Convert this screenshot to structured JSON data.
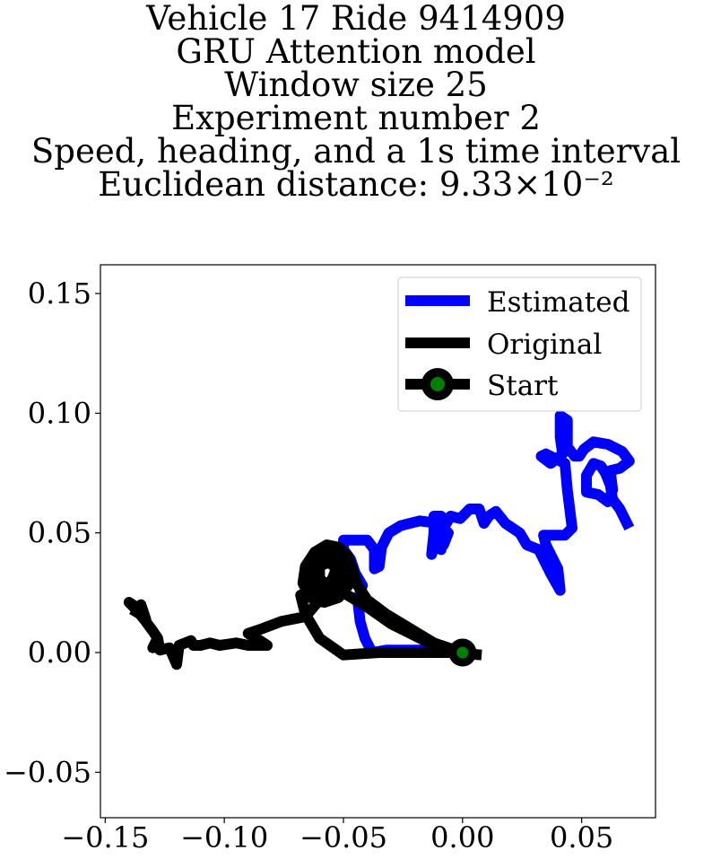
{
  "chart_data": {
    "type": "line",
    "title_lines": [
      "Vehicle 17 Ride 9414909",
      "GRU Attention model",
      "Window size 25",
      "Experiment number 2",
      "Speed, heading, and a 1s time interval",
      "Euclidean distance: 9.33×10⁻²"
    ],
    "xlim": [
      -0.152,
      0.081
    ],
    "ylim": [
      -0.069,
      0.162
    ],
    "x_ticks": [
      -0.15,
      -0.1,
      -0.05,
      0.0,
      0.05
    ],
    "x_tick_labels": [
      "−0.15",
      "−0.10",
      "−0.05",
      "0.00",
      "0.05"
    ],
    "y_ticks": [
      -0.05,
      0.0,
      0.05,
      0.1,
      0.15
    ],
    "y_tick_labels": [
      "−0.05",
      "0.00",
      "0.05",
      "0.10",
      "0.15"
    ],
    "grid": false,
    "legend_position": "upper right",
    "legend": [
      "Estimated",
      "Original",
      "Start"
    ],
    "series": [
      {
        "name": "Estimated",
        "color": "#0000ff",
        "points": [
          [
            0.0,
            0.0
          ],
          [
            -0.015,
            0.001
          ],
          [
            -0.032,
            0.001
          ],
          [
            -0.038,
            0.0
          ],
          [
            -0.041,
            0.006
          ],
          [
            -0.043,
            0.013
          ],
          [
            -0.044,
            0.022
          ],
          [
            -0.042,
            0.028
          ],
          [
            -0.045,
            0.033
          ],
          [
            -0.047,
            0.039
          ],
          [
            -0.05,
            0.043
          ],
          [
            -0.05,
            0.047
          ],
          [
            -0.045,
            0.047
          ],
          [
            -0.04,
            0.047
          ],
          [
            -0.037,
            0.043
          ],
          [
            -0.037,
            0.035
          ],
          [
            -0.035,
            0.036
          ],
          [
            -0.034,
            0.044
          ],
          [
            -0.031,
            0.05
          ],
          [
            -0.026,
            0.053
          ],
          [
            -0.018,
            0.055
          ],
          [
            -0.01,
            0.054
          ],
          [
            -0.006,
            0.05
          ],
          [
            -0.008,
            0.045
          ],
          [
            -0.01,
            0.05
          ],
          [
            -0.013,
            0.041
          ],
          [
            -0.012,
            0.05
          ],
          [
            -0.012,
            0.057
          ],
          [
            -0.009,
            0.057
          ],
          [
            -0.011,
            0.05
          ],
          [
            -0.009,
            0.043
          ],
          [
            -0.008,
            0.052
          ],
          [
            -0.005,
            0.057
          ],
          [
            -0.001,
            0.056
          ],
          [
            0.003,
            0.06
          ],
          [
            0.007,
            0.06
          ],
          [
            0.009,
            0.054
          ],
          [
            0.011,
            0.057
          ],
          [
            0.014,
            0.059
          ],
          [
            0.018,
            0.054
          ],
          [
            0.024,
            0.05
          ],
          [
            0.027,
            0.045
          ],
          [
            0.032,
            0.043
          ],
          [
            0.037,
            0.033
          ],
          [
            0.041,
            0.026
          ],
          [
            0.04,
            0.035
          ],
          [
            0.035,
            0.045
          ],
          [
            0.034,
            0.049
          ],
          [
            0.043,
            0.049
          ],
          [
            0.046,
            0.052
          ],
          [
            0.044,
            0.068
          ],
          [
            0.043,
            0.079
          ],
          [
            0.035,
            0.083
          ],
          [
            0.033,
            0.082
          ],
          [
            0.037,
            0.079
          ],
          [
            0.042,
            0.083
          ],
          [
            0.041,
            0.09
          ],
          [
            0.041,
            0.099
          ],
          [
            0.044,
            0.097
          ],
          [
            0.044,
            0.086
          ],
          [
            0.047,
            0.082
          ],
          [
            0.049,
            0.082
          ],
          [
            0.051,
            0.085
          ],
          [
            0.055,
            0.088
          ],
          [
            0.061,
            0.087
          ],
          [
            0.067,
            0.084
          ],
          [
            0.07,
            0.08
          ],
          [
            0.066,
            0.077
          ],
          [
            0.062,
            0.076
          ],
          [
            0.063,
            0.068
          ],
          [
            0.061,
            0.063
          ],
          [
            0.057,
            0.066
          ],
          [
            0.052,
            0.067
          ],
          [
            0.052,
            0.074
          ],
          [
            0.055,
            0.079
          ],
          [
            0.058,
            0.078
          ],
          [
            0.06,
            0.075
          ],
          [
            0.062,
            0.07
          ],
          [
            0.063,
            0.064
          ],
          [
            0.066,
            0.06
          ],
          [
            0.07,
            0.052
          ]
        ]
      },
      {
        "name": "Original",
        "color": "#000000",
        "points": [
          [
            0.008,
            -0.001
          ],
          [
            -0.005,
            0.0
          ],
          [
            -0.02,
            0.0
          ],
          [
            -0.035,
            0.0
          ],
          [
            -0.05,
            -0.001
          ],
          [
            -0.06,
            0.006
          ],
          [
            -0.066,
            0.016
          ],
          [
            -0.068,
            0.024
          ],
          [
            -0.06,
            0.027
          ],
          [
            -0.05,
            0.025
          ],
          [
            -0.04,
            0.019
          ],
          [
            -0.03,
            0.012
          ],
          [
            -0.02,
            0.007
          ],
          [
            -0.012,
            0.003
          ],
          [
            -0.005,
            0.001
          ],
          [
            0.0,
            0.0
          ],
          [
            -0.003,
            0.001
          ],
          [
            -0.012,
            0.004
          ],
          [
            -0.022,
            0.01
          ],
          [
            -0.032,
            0.016
          ],
          [
            -0.04,
            0.022
          ],
          [
            -0.044,
            0.028
          ],
          [
            -0.046,
            0.034
          ],
          [
            -0.048,
            0.04
          ],
          [
            -0.052,
            0.044
          ],
          [
            -0.057,
            0.045
          ],
          [
            -0.062,
            0.042
          ],
          [
            -0.066,
            0.036
          ],
          [
            -0.067,
            0.029
          ],
          [
            -0.064,
            0.023
          ],
          [
            -0.058,
            0.021
          ],
          [
            -0.052,
            0.023
          ],
          [
            -0.048,
            0.028
          ],
          [
            -0.047,
            0.035
          ],
          [
            -0.05,
            0.041
          ],
          [
            -0.055,
            0.043
          ],
          [
            -0.061,
            0.04
          ],
          [
            -0.064,
            0.034
          ],
          [
            -0.063,
            0.028
          ],
          [
            -0.058,
            0.025
          ],
          [
            -0.053,
            0.027
          ],
          [
            -0.051,
            0.032
          ],
          [
            -0.052,
            0.038
          ],
          [
            -0.056,
            0.041
          ],
          [
            -0.061,
            0.039
          ],
          [
            -0.062,
            0.032
          ],
          [
            -0.059,
            0.028
          ],
          [
            -0.055,
            0.03
          ],
          [
            -0.053,
            0.035
          ],
          [
            -0.056,
            0.038
          ],
          [
            -0.06,
            0.036
          ],
          [
            -0.06,
            0.031
          ],
          [
            -0.057,
            0.028
          ],
          [
            -0.06,
            0.022
          ],
          [
            -0.066,
            0.015
          ],
          [
            -0.076,
            0.013
          ],
          [
            -0.084,
            0.01
          ],
          [
            -0.09,
            0.008
          ],
          [
            -0.085,
            0.005
          ],
          [
            -0.082,
            0.003
          ],
          [
            -0.09,
            0.003
          ],
          [
            -0.095,
            0.004
          ],
          [
            -0.102,
            0.003
          ],
          [
            -0.106,
            0.004
          ],
          [
            -0.11,
            0.003
          ],
          [
            -0.113,
            0.003
          ],
          [
            -0.114,
            0.005
          ],
          [
            -0.119,
            0.003
          ],
          [
            -0.12,
            -0.005
          ],
          [
            -0.123,
            0.002
          ],
          [
            -0.127,
            0.001
          ],
          [
            -0.128,
            0.006
          ],
          [
            -0.13,
            0.002
          ],
          [
            -0.128,
            0.006
          ],
          [
            -0.13,
            0.009
          ],
          [
            -0.133,
            0.013
          ],
          [
            -0.137,
            0.018
          ],
          [
            -0.14,
            0.021
          ],
          [
            -0.137,
            0.019
          ],
          [
            -0.133,
            0.014
          ],
          [
            -0.135,
            0.02
          ],
          [
            -0.138,
            0.015
          ]
        ]
      }
    ],
    "start": {
      "name": "Start",
      "x": 0.0,
      "y": 0.0,
      "color": "#008000"
    }
  }
}
